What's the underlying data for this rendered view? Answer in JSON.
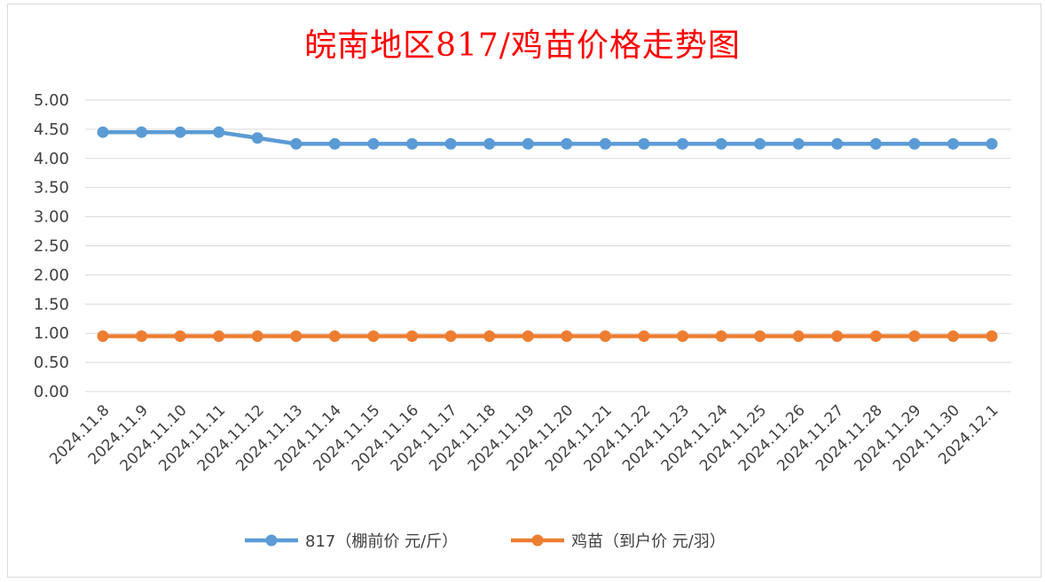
{
  "chart_data": {
    "type": "line",
    "title": "皖南地区817/鸡苗价格走势图",
    "title_color": "#ff0000",
    "xlabel": "",
    "ylabel": "",
    "ylim": [
      0,
      5
    ],
    "y_ticks": [
      "0.00",
      "0.50",
      "1.00",
      "1.50",
      "2.00",
      "2.50",
      "3.00",
      "3.50",
      "4.00",
      "4.50",
      "5.00"
    ],
    "grid": true,
    "legend_position": "bottom",
    "categories": [
      "2024.11.8",
      "2024.11.9",
      "2024.11.10",
      "2024.11.11",
      "2024.11.12",
      "2024.11.13",
      "2024.11.14",
      "2024.11.15",
      "2024.11.16",
      "2024.11.17",
      "2024.11.18",
      "2024.11.19",
      "2024.11.20",
      "2024.11.21",
      "2024.11.22",
      "2024.11.23",
      "2024.11.24",
      "2024.11.25",
      "2024.11.26",
      "2024.11.27",
      "2024.11.28",
      "2024.11.29",
      "2024.11.30",
      "2024.12.1"
    ],
    "series": [
      {
        "name": "817（棚前价 元/斤）",
        "color": "#5b9bd5",
        "values": [
          4.45,
          4.45,
          4.45,
          4.45,
          4.35,
          4.25,
          4.25,
          4.25,
          4.25,
          4.25,
          4.25,
          4.25,
          4.25,
          4.25,
          4.25,
          4.25,
          4.25,
          4.25,
          4.25,
          4.25,
          4.25,
          4.25,
          4.25,
          4.25
        ]
      },
      {
        "name": "鸡苗（到户价 元/羽）",
        "color": "#ed7d31",
        "values": [
          0.95,
          0.95,
          0.95,
          0.95,
          0.95,
          0.95,
          0.95,
          0.95,
          0.95,
          0.95,
          0.95,
          0.95,
          0.95,
          0.95,
          0.95,
          0.95,
          0.95,
          0.95,
          0.95,
          0.95,
          0.95,
          0.95,
          0.95,
          0.95
        ]
      }
    ]
  }
}
